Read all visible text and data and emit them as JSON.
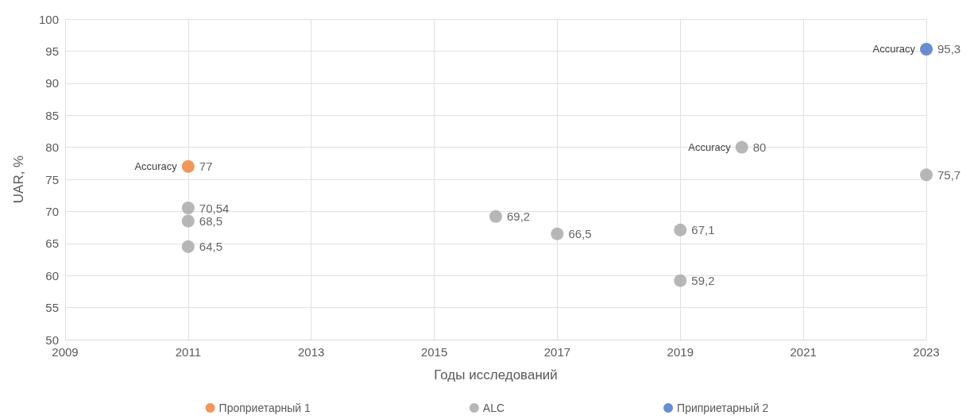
{
  "chart_data": {
    "type": "scatter",
    "xlabel": "Годы исследований",
    "ylabel": "UAR, %",
    "xlim": [
      2009,
      2023
    ],
    "xticks": [
      2009,
      2011,
      2013,
      2015,
      2017,
      2019,
      2021,
      2023
    ],
    "ylim": [
      50,
      100
    ],
    "yticks": [
      50,
      55,
      60,
      65,
      70,
      75,
      80,
      85,
      90,
      95,
      100
    ],
    "grid": true,
    "legend": "bottom",
    "marker": "circle",
    "series": [
      {
        "name": "Проприетарный 1",
        "color": "#ed7d31",
        "x": [
          2011
        ],
        "values": [
          77
        ],
        "value_labels": [
          "77"
        ]
      },
      {
        "name": "ALC",
        "color": "#a5a5a5",
        "x": [
          2011,
          2011,
          2011,
          2016,
          2017,
          2019,
          2019,
          2020,
          2023
        ],
        "values": [
          70.54,
          68.5,
          64.5,
          69.2,
          66.5,
          67.1,
          59.2,
          80,
          75.7
        ],
        "value_labels": [
          "70,54",
          "68,5",
          "64,5",
          "69,2",
          "66,5",
          "67,1",
          "59,2",
          "80",
          "75,7"
        ]
      },
      {
        "name": "Приприетарный 2",
        "color": "#4472c4",
        "x": [
          2023
        ],
        "values": [
          95.3
        ],
        "value_labels": [
          "95,3"
        ]
      }
    ],
    "annotations": [
      {
        "text": "Accuracy",
        "x": 2011,
        "y": 77
      },
      {
        "text": "Accuracy",
        "x": 2020,
        "y": 80
      },
      {
        "text": "Accuracy",
        "x": 2023,
        "y": 95.3
      }
    ]
  }
}
